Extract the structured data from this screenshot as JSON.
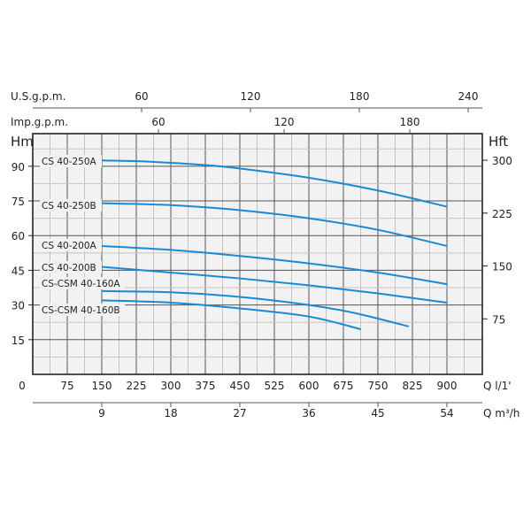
{
  "chart_data": {
    "type": "line",
    "title": "",
    "xlabel": "Q l/1'",
    "ylabel": "Hm",
    "y2label": "Hft",
    "x2label": "Q m³/h",
    "top_axis_us_label": "U.S.g.p.m.",
    "top_axis_imp_label": "Imp.g.p.m.",
    "xlim": [
      0,
      983
    ],
    "ylim": [
      0,
      104
    ],
    "grid": true,
    "x_ticks": [
      0,
      75,
      150,
      225,
      300,
      375,
      450,
      525,
      600,
      675,
      750,
      825,
      900
    ],
    "y_ticks": [
      15,
      30,
      45,
      60,
      75,
      90
    ],
    "y2_ticks": [
      75,
      150,
      225,
      300
    ],
    "m3h_ticks": [
      9,
      18,
      27,
      36,
      45,
      54
    ],
    "us_gpm_ticks": [
      60,
      120,
      180,
      240
    ],
    "imp_gpm_ticks": [
      60,
      120,
      180
    ],
    "series": [
      {
        "name": "CS 40-250A",
        "x": [
          150,
          250,
          375,
          450,
          600,
          750,
          900
        ],
        "y": [
          92.5,
          92,
          90.5,
          89,
          85,
          79.5,
          72.5
        ]
      },
      {
        "name": "CS 40-250B",
        "x": [
          150,
          300,
          450,
          600,
          750,
          900
        ],
        "y": [
          74,
          73.2,
          71,
          67.5,
          62.5,
          55.5
        ]
      },
      {
        "name": "CS 40-200A",
        "x": [
          150,
          300,
          450,
          600,
          750,
          900
        ],
        "y": [
          55.5,
          53.8,
          51.2,
          48,
          44,
          39
        ]
      },
      {
        "name": "CS 40-200B",
        "x": [
          150,
          300,
          450,
          600,
          750,
          900
        ],
        "y": [
          46.5,
          44,
          41.5,
          38.5,
          35,
          31
        ]
      },
      {
        "name": "CS-CSM 40-160A",
        "x": [
          150,
          300,
          450,
          600,
          700,
          817
        ],
        "y": [
          36,
          35.5,
          33.5,
          30,
          26.5,
          20.7
        ]
      },
      {
        "name": "CS-CSM 40-160B",
        "x": [
          150,
          300,
          450,
          600,
          713
        ],
        "y": [
          32,
          31,
          28.5,
          25,
          19.5
        ]
      }
    ],
    "line_color": "#1a8ad4"
  }
}
